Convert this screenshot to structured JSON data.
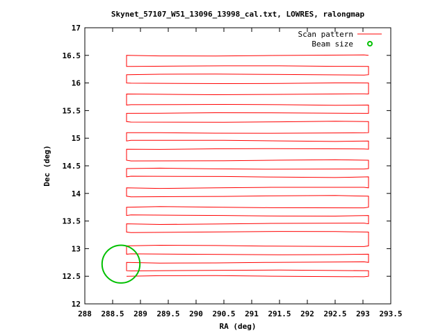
{
  "chart_data": {
    "type": "line",
    "title": "Skynet_57107_W51_13096_13998_cal.txt, LOWRES, ralongmap",
    "xlabel": "RA (deg)",
    "ylabel": "Dec (deg)",
    "xlim": [
      288,
      293.5
    ],
    "ylim": [
      12,
      17
    ],
    "xticks": [
      "288",
      "288.5",
      "289",
      "289.5",
      "290",
      "290.5",
      "291",
      "291.5",
      "292",
      "292.5",
      "293",
      "293.5"
    ],
    "yticks": [
      "12",
      "12.5",
      "13",
      "13.5",
      "14",
      "14.5",
      "15",
      "15.5",
      "16",
      "16.5",
      "17"
    ],
    "grid": false,
    "legend": {
      "position": "top-right",
      "entries": [
        {
          "label": "Scan pattern",
          "color": "#ff0000",
          "kind": "line"
        },
        {
          "label": "Beam size",
          "color": "#00c000",
          "kind": "circle"
        }
      ]
    },
    "series": [
      {
        "name": "Scan pattern",
        "color": "#ff0000",
        "ra_range": [
          288.75,
          293.1
        ],
        "rows": [
          {
            "dec": 12.5,
            "dir": 1
          },
          {
            "dec": 12.6,
            "dir": -1
          },
          {
            "dec": 12.75,
            "dir": 1
          },
          {
            "dec": 12.9,
            "dir": -1
          },
          {
            "dec": 13.05,
            "dir": 1
          },
          {
            "dec": 13.3,
            "dir": -1
          },
          {
            "dec": 13.45,
            "dir": 1
          },
          {
            "dec": 13.6,
            "dir": -1
          },
          {
            "dec": 13.75,
            "dir": 1
          },
          {
            "dec": 13.95,
            "dir": -1
          },
          {
            "dec": 14.1,
            "dir": 1
          },
          {
            "dec": 14.3,
            "dir": -1
          },
          {
            "dec": 14.45,
            "dir": 1
          },
          {
            "dec": 14.6,
            "dir": -1
          },
          {
            "dec": 14.8,
            "dir": 1
          },
          {
            "dec": 14.95,
            "dir": -1
          },
          {
            "dec": 15.1,
            "dir": 1
          },
          {
            "dec": 15.3,
            "dir": -1
          },
          {
            "dec": 15.45,
            "dir": 1
          },
          {
            "dec": 15.6,
            "dir": -1
          },
          {
            "dec": 15.8,
            "dir": 1
          },
          {
            "dec": 16.0,
            "dir": -1
          },
          {
            "dec": 16.15,
            "dir": 1
          },
          {
            "dec": 16.3,
            "dir": -1
          },
          {
            "dec": 16.5,
            "dir": 1
          }
        ]
      },
      {
        "name": "Beam size",
        "color": "#00c000",
        "circle": {
          "ra": 288.65,
          "dec": 12.72,
          "radius_deg": 0.34
        }
      }
    ]
  }
}
